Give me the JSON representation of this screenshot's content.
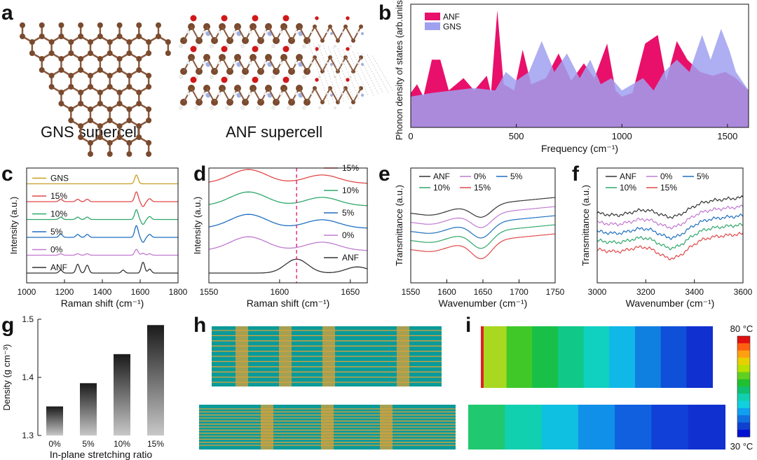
{
  "panels": {
    "a": {
      "letter": "a",
      "gns_caption": "GNS supercell",
      "anf_caption": "ANF supercell"
    },
    "b": {
      "letter": "b"
    },
    "c": {
      "letter": "c"
    },
    "d": {
      "letter": "d"
    },
    "e": {
      "letter": "e"
    },
    "f": {
      "letter": "f"
    },
    "g": {
      "letter": "g"
    },
    "h": {
      "letter": "h"
    },
    "i": {
      "letter": "i"
    }
  },
  "colors": {
    "ANF": "#333333",
    "GNS": "#c8a020",
    "p0": "#c07ad0",
    "p5": "#1f6fbf",
    "p10": "#2ea86a",
    "p15": "#e04848",
    "pink": "#e8106a",
    "lavender": "#a0a0f0",
    "atom_c": "#7a4a2e",
    "teal": "#0a9a9a",
    "gold": "#d9a23a"
  },
  "chart_data": [
    {
      "id": "b",
      "type": "area",
      "title": "",
      "xlabel": "Frequency (cm⁻¹)",
      "ylabel": "Phonon density of states (arb.units)",
      "xlim": [
        0,
        1600
      ],
      "ylim": [
        0,
        1
      ],
      "xticks": [
        "0",
        "500",
        "1000",
        "1500"
      ],
      "xtick_values": [
        0,
        500,
        1000,
        1500
      ],
      "legend": [
        "ANF",
        "GNS"
      ],
      "series": [
        {
          "name": "ANF",
          "x": [
            0,
            30,
            60,
            100,
            140,
            180,
            250,
            300,
            360,
            380,
            410,
            440,
            490,
            530,
            570,
            640,
            700,
            760,
            820,
            870,
            930,
            970,
            1000,
            1050,
            1110,
            1170,
            1210,
            1260,
            1310,
            1370,
            1430,
            1490,
            1540,
            1600
          ],
          "y": [
            0.28,
            0.35,
            0.25,
            0.55,
            0.55,
            0.3,
            0.4,
            0.3,
            0.42,
            0.28,
            0.95,
            0.35,
            0.3,
            0.63,
            0.35,
            0.4,
            0.6,
            0.38,
            0.52,
            0.4,
            0.68,
            0.3,
            0.25,
            0.28,
            0.68,
            0.75,
            0.38,
            0.7,
            0.55,
            0.45,
            0.42,
            0.45,
            0.4,
            0.3
          ]
        },
        {
          "name": "GNS",
          "x": [
            0,
            100,
            200,
            300,
            400,
            450,
            500,
            560,
            620,
            680,
            740,
            800,
            850,
            900,
            950,
            1000,
            1050,
            1100,
            1150,
            1200,
            1260,
            1320,
            1380,
            1420,
            1470,
            1510,
            1540,
            1580,
            1600
          ],
          "y": [
            0.25,
            0.28,
            0.3,
            0.32,
            0.3,
            0.45,
            0.38,
            0.45,
            0.7,
            0.45,
            0.6,
            0.4,
            0.55,
            0.35,
            0.4,
            0.3,
            0.35,
            0.4,
            0.3,
            0.45,
            0.55,
            0.45,
            0.75,
            0.55,
            0.8,
            0.62,
            0.45,
            0.35,
            0.3
          ]
        }
      ]
    },
    {
      "id": "c",
      "type": "line",
      "xlabel": "Raman shift (cm⁻¹)",
      "ylabel": "Intensity (a.u.)",
      "xlim": [
        1000,
        1800
      ],
      "xticks": [
        "1000",
        "1200",
        "1400",
        "1600",
        "1800"
      ],
      "xtick_values": [
        1000,
        1200,
        1400,
        1600,
        1800
      ],
      "series": [
        {
          "name": "GNS",
          "color_key": "GNS",
          "offset": 5,
          "peaks": [
            [
              1580,
              0.9
            ]
          ]
        },
        {
          "name": "15%",
          "color_key": "p15",
          "offset": 4,
          "peaks": [
            [
              1180,
              0.25
            ],
            [
              1270,
              0.25
            ],
            [
              1320,
              0.25
            ],
            [
              1580,
              1.0
            ],
            [
              1615,
              -0.5
            ],
            [
              1650,
              0.3
            ]
          ]
        },
        {
          "name": "10%",
          "color_key": "p10",
          "offset": 3,
          "peaks": [
            [
              1180,
              0.25
            ],
            [
              1270,
              0.25
            ],
            [
              1320,
              0.25
            ],
            [
              1580,
              1.0
            ],
            [
              1615,
              -0.5
            ],
            [
              1650,
              0.3
            ]
          ]
        },
        {
          "name": "5%",
          "color_key": "p5",
          "offset": 2,
          "peaks": [
            [
              1180,
              0.35
            ],
            [
              1270,
              0.3
            ],
            [
              1320,
              0.3
            ],
            [
              1580,
              1.2
            ],
            [
              1615,
              -0.5
            ],
            [
              1650,
              0.3
            ]
          ]
        },
        {
          "name": "0%",
          "color_key": "p0",
          "offset": 1,
          "peaks": [
            [
              1180,
              0.15
            ],
            [
              1270,
              0.15
            ],
            [
              1320,
              0.15
            ],
            [
              1580,
              0.6
            ],
            [
              1615,
              0.2
            ],
            [
              1650,
              0.15
            ]
          ]
        },
        {
          "name": "ANF",
          "color_key": "ANF",
          "offset": 0,
          "peaks": [
            [
              1180,
              0.3
            ],
            [
              1270,
              0.9
            ],
            [
              1320,
              0.8
            ],
            [
              1510,
              0.3
            ],
            [
              1615,
              1.1
            ],
            [
              1650,
              0.4
            ]
          ]
        }
      ]
    },
    {
      "id": "d",
      "type": "line",
      "xlabel": "Raman shift (cm⁻¹)",
      "ylabel": "Intensity (a.u.)",
      "xlim": [
        1550,
        1662
      ],
      "xticks": [
        "1550",
        "1600",
        "1650"
      ],
      "xtick_values": [
        1550,
        1600,
        1650
      ],
      "dashed_marker": 1612,
      "series": [
        {
          "name": "15%",
          "color_key": "p15",
          "offset": 4
        },
        {
          "name": "10%",
          "color_key": "p10",
          "offset": 3
        },
        {
          "name": "5%",
          "color_key": "p5",
          "offset": 2
        },
        {
          "name": "0%",
          "color_key": "p0",
          "offset": 1
        },
        {
          "name": "ANF",
          "color_key": "ANF",
          "offset": 0
        }
      ]
    },
    {
      "id": "e",
      "type": "line",
      "xlabel": "Wavenumber (cm⁻¹)",
      "ylabel": "Transmittance (a.u.)",
      "xlim": [
        1550,
        1750
      ],
      "xticks": [
        "1550",
        "1600",
        "1650",
        "1700",
        "1750"
      ],
      "xtick_values": [
        1550,
        1600,
        1650,
        1700,
        1750
      ],
      "legend": [
        "ANF",
        "0%",
        "5%",
        "10%",
        "15%"
      ],
      "series": [
        {
          "name": "ANF",
          "color_key": "ANF",
          "offset": 4
        },
        {
          "name": "0%",
          "color_key": "p0",
          "offset": 3
        },
        {
          "name": "5%",
          "color_key": "p5",
          "offset": 2
        },
        {
          "name": "10%",
          "color_key": "p10",
          "offset": 1
        },
        {
          "name": "15%",
          "color_key": "p15",
          "offset": 0
        }
      ]
    },
    {
      "id": "f",
      "type": "line",
      "xlabel": "Wavenumber (cm⁻¹)",
      "ylabel": "Transmittance (a.u.)",
      "xlim": [
        3000,
        3600
      ],
      "xticks": [
        "3000",
        "3200",
        "3400",
        "3600"
      ],
      "xtick_values": [
        3000,
        3200,
        3400,
        3600
      ],
      "legend": [
        "ANF",
        "0%",
        "5%",
        "10%",
        "15%"
      ],
      "series": [
        {
          "name": "ANF",
          "color_key": "ANF",
          "offset": 4
        },
        {
          "name": "0%",
          "color_key": "p0",
          "offset": 3
        },
        {
          "name": "5%",
          "color_key": "p5",
          "offset": 2
        },
        {
          "name": "10%",
          "color_key": "p10",
          "offset": 1
        },
        {
          "name": "15%",
          "color_key": "p15",
          "offset": 0
        }
      ]
    },
    {
      "id": "g",
      "type": "bar",
      "xlabel": "In-plane stretching ratio",
      "ylabel": "Density (g cm⁻³)",
      "categories": [
        "0%",
        "5%",
        "10%",
        "15%"
      ],
      "values": [
        1.35,
        1.39,
        1.44,
        1.49
      ],
      "ylim": [
        1.3,
        1.5
      ],
      "yticks": [
        "1.3",
        "1.4",
        "1.5"
      ],
      "ytick_values": [
        1.3,
        1.4,
        1.5
      ]
    }
  ],
  "heatmap": {
    "max_label": "80 °C",
    "min_label": "30 °C",
    "scale_colors": [
      "#e01010",
      "#ff6010",
      "#ffa010",
      "#e8d000",
      "#b8e000",
      "#60d020",
      "#20c030",
      "#10c070",
      "#10d0b0",
      "#10d0e0",
      "#10a0f0",
      "#1070e0",
      "#1040d0",
      "#0010d0"
    ]
  }
}
